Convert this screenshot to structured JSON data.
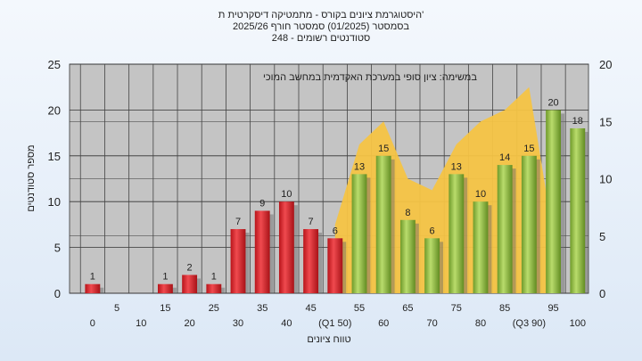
{
  "chart_data": {
    "type": "bar",
    "title_lines": [
      "היסטוגרמת ציונים בקורס - מתמטיקה דיסקרטית ת'",
      "בסמסטר  (01/2025)  סמסטר חורף  2025/26",
      "סטודנטים רשומים - 248"
    ],
    "inner_title": "במשימה: ציון סופי במערכת האקדמית במחשב המוכי",
    "xlabel": "טווח ציונים",
    "ylabel": "מספר סטודנטים",
    "categories": [
      "0",
      "5",
      "10",
      "15",
      "20",
      "25",
      "30",
      "35",
      "40",
      "45",
      "50",
      "55",
      "60",
      "65",
      "70",
      "75",
      "80",
      "85",
      "90",
      "95",
      "100"
    ],
    "x_tick_labels_row1": [
      "5",
      "15",
      "25",
      "35",
      "45",
      "55",
      "65",
      "75",
      "85",
      "95"
    ],
    "x_tick_labels_row2": [
      "0",
      "10",
      "20",
      "30",
      "40",
      "(Q1 50)",
      "60",
      "70",
      "80",
      "(Q3 90)",
      "100"
    ],
    "series": [
      {
        "values": [
          1,
          0,
          0,
          1,
          2,
          1,
          7,
          9,
          10,
          7,
          6,
          13,
          15,
          8,
          6,
          13,
          10,
          14,
          15,
          20,
          18
        ],
        "colors": [
          "red",
          "red",
          "red",
          "red",
          "red",
          "red",
          "red",
          "red",
          "red",
          "red",
          "red",
          "green",
          "green",
          "green",
          "green",
          "green",
          "green",
          "green",
          "green",
          "green",
          "green"
        ]
      }
    ],
    "area_series": {
      "x": [
        "50",
        "55",
        "60",
        "65",
        "70",
        "75",
        "80",
        "85",
        "90",
        "95"
      ],
      "values": [
        6,
        13,
        15,
        10,
        9,
        13,
        15,
        16,
        18,
        5
      ]
    },
    "left_axis": {
      "ylim": [
        0,
        25
      ],
      "ticks": [
        "0",
        "5",
        "10",
        "15",
        "20",
        "25"
      ]
    },
    "right_axis": {
      "ylim": [
        0,
        20
      ],
      "ticks": [
        "0",
        "5",
        "10",
        "15",
        "20"
      ]
    },
    "grid": true,
    "colors": {
      "red_bar": "#e0242a",
      "green_bar": "#97c24a",
      "area_fill": "#f6c445",
      "plot_bg": "#c4c4c4"
    }
  }
}
